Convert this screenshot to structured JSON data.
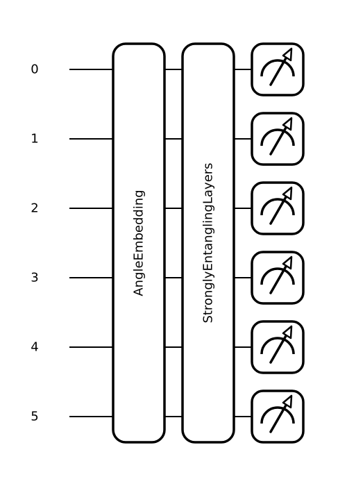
{
  "wires": [
    "0",
    "1",
    "2",
    "3",
    "4",
    "5"
  ],
  "gates": [
    {
      "label": "AngleEmbedding"
    },
    {
      "label": "StronglyEntanglingLayers"
    }
  ],
  "measurement": {
    "icon": "measurement-meter-icon"
  },
  "colors": {
    "stroke": "#000000",
    "fill": "#ffffff"
  }
}
